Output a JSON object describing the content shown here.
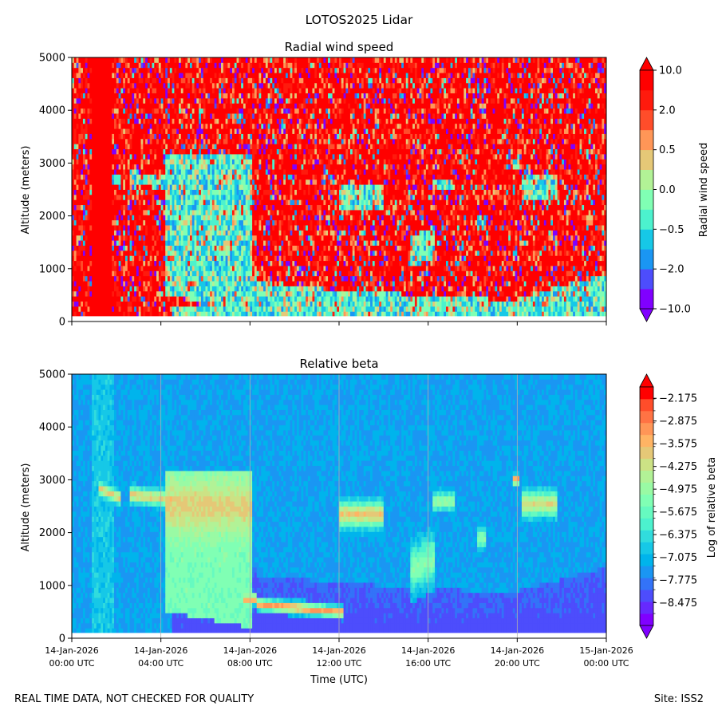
{
  "figure_title": "LOTOS2025 Lidar",
  "footer": {
    "note": "REAL TIME DATA, NOT CHECKED FOR QUALITY",
    "site": "Site: ISS2"
  },
  "chart_data": [
    {
      "type": "heatmap",
      "title": "Radial wind speed",
      "ylabel": "Altitude (meters)",
      "ylim": [
        0,
        5000
      ],
      "yticks": [
        "0",
        "1000",
        "2000",
        "3000",
        "4000",
        "5000"
      ],
      "xlim_hours": [
        0,
        24
      ],
      "x_ticks_hours": [
        0,
        4,
        8,
        12,
        16,
        20,
        24
      ],
      "x_tick_labels_shown": false,
      "colorbar": {
        "label": "Radial wind speed",
        "levels": 12,
        "colors": [
          "#8000ff",
          "#4d4dfc",
          "#1a96f3",
          "#16c8e7",
          "#4cf2ce",
          "#80ffb4",
          "#b2f296",
          "#e5c877",
          "#ff9657",
          "#ff4d2a",
          "#ff1a0d",
          "#ff0000"
        ],
        "ticks": [
          "10.0",
          "2.0",
          "0.5",
          "0.0",
          "−0.5",
          "−2.0",
          "−10.0"
        ],
        "extend": "both"
      }
    },
    {
      "type": "heatmap",
      "title": "Relative beta",
      "ylabel": "Altitude (meters)",
      "xlabel": "Time (UTC)",
      "ylim": [
        0,
        5000
      ],
      "yticks": [
        "0",
        "1000",
        "2000",
        "3000",
        "4000",
        "5000"
      ],
      "xlim_hours": [
        0,
        24
      ],
      "x_ticks_hours": [
        0,
        4,
        8,
        12,
        16,
        20,
        24
      ],
      "x_tick_labels": [
        [
          "14-Jan-2026",
          "00:00 UTC"
        ],
        [
          "14-Jan-2026",
          "04:00 UTC"
        ],
        [
          "14-Jan-2026",
          "08:00 UTC"
        ],
        [
          "14-Jan-2026",
          "12:00 UTC"
        ],
        [
          "14-Jan-2026",
          "16:00 UTC"
        ],
        [
          "14-Jan-2026",
          "20:00 UTC"
        ],
        [
          "15-Jan-2026",
          "00:00 UTC"
        ]
      ],
      "grid_x": true,
      "colorbar": {
        "label": "Log of relative beta",
        "levels": 20,
        "colors": [
          "#8000ff",
          "#6629fe",
          "#4d4dfc",
          "#3373f8",
          "#1a96f3",
          "#00b4ec",
          "#16c8e7",
          "#31dcdd",
          "#4cf2ce",
          "#66fac0",
          "#80ffb4",
          "#99faa4",
          "#b2f296",
          "#cce285",
          "#e5c877",
          "#ffb464",
          "#ff9657",
          "#ff7344",
          "#ff4d2a",
          "#ff0000"
        ],
        "ticks": [
          "−2.175",
          "−2.875",
          "−3.575",
          "−4.275",
          "−4.975",
          "−5.675",
          "−6.375",
          "−7.075",
          "−7.775",
          "−8.475"
        ],
        "tick_values": [
          -2.175,
          -2.875,
          -3.575,
          -4.275,
          -4.975,
          -5.675,
          -6.375,
          -7.075,
          -7.775,
          -8.475
        ],
        "range": [
          -9.175,
          -1.825
        ],
        "extend": "both"
      }
    }
  ]
}
